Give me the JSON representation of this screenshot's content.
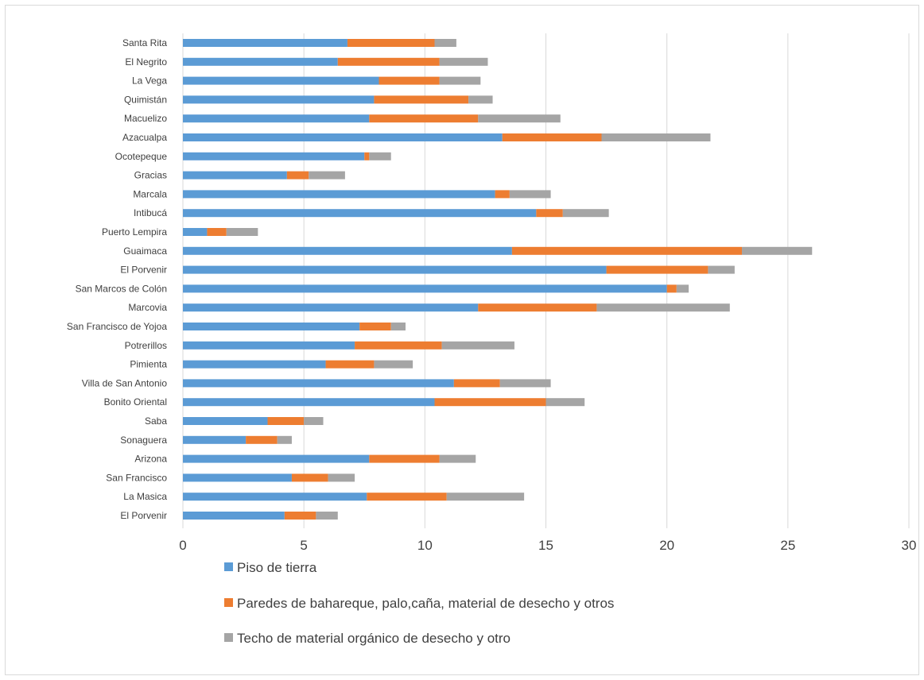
{
  "chart_data": {
    "type": "bar",
    "orientation": "horizontal",
    "stacked": true,
    "title": "",
    "xlabel": "",
    "ylabel": "",
    "xlim": [
      0,
      30
    ],
    "x_ticks": [
      0,
      5,
      10,
      15,
      20,
      25,
      30
    ],
    "grid": "vertical",
    "legend_position": "bottom",
    "categories": [
      "Santa Rita",
      "El Negrito",
      "La Vega",
      "Quimistán",
      "Macuelizo",
      "Azacualpa",
      "Ocotepeque",
      "Gracias",
      "Marcala",
      "Intibucá",
      "Puerto Lempira",
      "Guaimaca",
      "El Porvenir",
      "San Marcos de Colón",
      "Marcovia",
      "San Francisco de Yojoa",
      "Potrerillos",
      "Pimienta",
      "Villa de San Antonio",
      "Bonito Oriental",
      "Saba",
      "Sonaguera",
      "Arizona",
      "San Francisco",
      "La Masica",
      "El Porvenir"
    ],
    "series": [
      {
        "name": "Piso de tierra",
        "color": "#5b9bd5",
        "values": [
          6.8,
          6.4,
          8.1,
          7.9,
          7.7,
          13.2,
          7.5,
          4.3,
          12.9,
          14.6,
          1.0,
          13.6,
          17.5,
          20.0,
          12.2,
          7.3,
          7.1,
          5.9,
          11.2,
          10.4,
          3.5,
          2.6,
          7.7,
          4.5,
          7.6,
          4.2
        ]
      },
      {
        "name": "Paredes de bahareque, palo,caña, material de desecho y otros",
        "color": "#ed7d31",
        "values": [
          3.6,
          4.2,
          2.5,
          3.9,
          4.5,
          4.1,
          0.2,
          0.9,
          0.6,
          1.1,
          0.8,
          9.5,
          4.2,
          0.4,
          4.9,
          1.3,
          3.6,
          2.0,
          1.9,
          4.6,
          1.5,
          1.3,
          2.9,
          1.5,
          3.3,
          1.3
        ]
      },
      {
        "name": "Techo de material orgánico de desecho y otro",
        "color": "#a5a5a5",
        "values": [
          0.9,
          2.0,
          1.7,
          1.0,
          3.4,
          4.5,
          0.9,
          1.5,
          1.7,
          1.9,
          1.3,
          2.9,
          1.1,
          0.5,
          5.5,
          0.6,
          3.0,
          1.6,
          2.1,
          1.6,
          0.8,
          0.6,
          1.5,
          1.1,
          3.2,
          0.9
        ]
      }
    ]
  }
}
